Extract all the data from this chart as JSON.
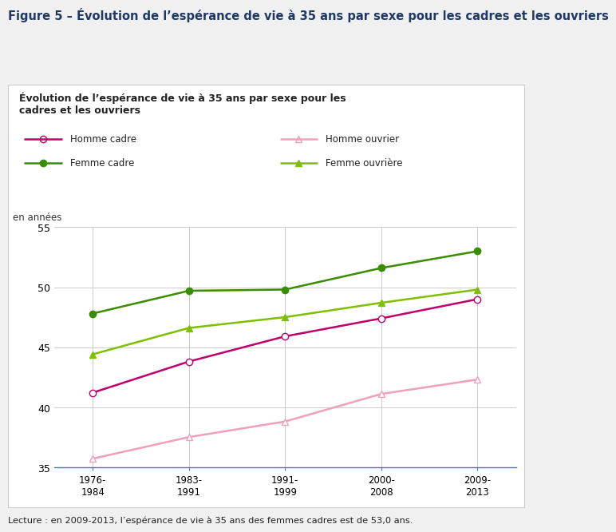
{
  "figure_title": "Figure 5 – Évolution de l’espérance de vie à 35 ans par sexe pour les cadres et les ouvriers",
  "chart_title": "Évolution de l’espérance de vie à 35 ans par sexe pour les\ncadres et les ouvriers",
  "ylabel": "en années",
  "x_labels": [
    "1976-\n1984",
    "1983-\n1991",
    "1991-\n1999",
    "2000-\n2008",
    "2009-\n2013"
  ],
  "x_values": [
    0,
    1,
    2,
    3,
    4
  ],
  "ylim": [
    35,
    55
  ],
  "yticks": [
    35,
    40,
    45,
    50,
    55
  ],
  "series": [
    {
      "label": "Homme cadre",
      "values": [
        41.2,
        43.8,
        45.9,
        47.4,
        49.0
      ],
      "color": "#c0006a",
      "marker": "o",
      "markersize": 6,
      "markerfacecolor": "white",
      "linewidth": 1.8
    },
    {
      "label": "Femme cadre",
      "values": [
        47.8,
        49.7,
        49.8,
        51.6,
        53.0
      ],
      "color": "#3a8c00",
      "marker": "o",
      "markersize": 6,
      "markerfacecolor": "#3a8c00",
      "linewidth": 1.8
    },
    {
      "label": "Homme ouvrier",
      "values": [
        35.7,
        37.5,
        38.8,
        41.1,
        42.3
      ],
      "color": "#f0a0b8",
      "marker": "^",
      "markersize": 6,
      "markerfacecolor": "white",
      "linewidth": 1.8
    },
    {
      "label": "Femme ouvrière",
      "values": [
        44.4,
        46.6,
        47.5,
        48.7,
        49.8
      ],
      "color": "#7dc000",
      "marker": "^",
      "markersize": 6,
      "markerfacecolor": "#7dc000",
      "linewidth": 1.8
    }
  ],
  "footnote": "Lecture : en 2009-2013, l’espérance de vie à 35 ans des femmes cadres est de 53,0 ans.",
  "figure_title_color": "#1f3864",
  "outer_bg_color": "#f0f0f0",
  "chart_bg_color": "#ffffff",
  "grid_color": "#cccccc",
  "axis_color": "#4472c4",
  "border_color": "#cccccc"
}
